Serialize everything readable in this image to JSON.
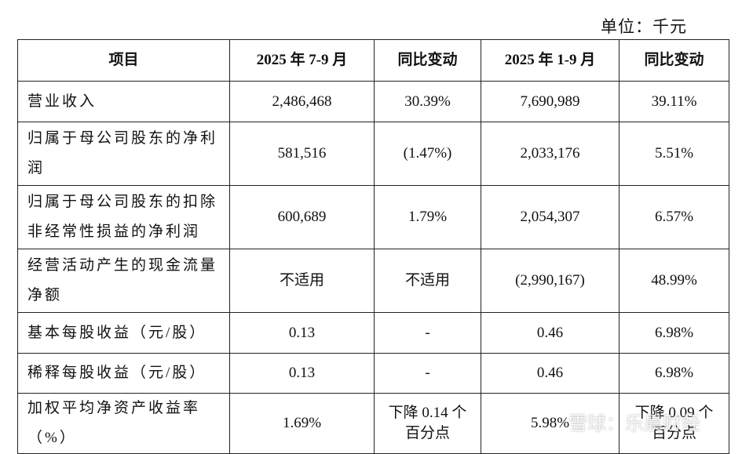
{
  "unit": "单位：千元",
  "table": {
    "header": [
      "项目",
      "2025 年 7-9 月",
      "同比变动",
      "2025 年 1-9 月",
      "同比变动"
    ],
    "rows": [
      [
        [
          "营业收入"
        ],
        [
          "2,486,468"
        ],
        [
          "30.39%"
        ],
        [
          "7,690,989"
        ],
        [
          "39.11%"
        ]
      ],
      [
        [
          "归属于母公司股东的净利",
          "润"
        ],
        [
          "581,516"
        ],
        [
          "(1.47%)"
        ],
        [
          "2,033,176"
        ],
        [
          "5.51%"
        ]
      ],
      [
        [
          "归属于母公司股东的扣除",
          "非经常性损益的净利润"
        ],
        [
          "600,689"
        ],
        [
          "1.79%"
        ],
        [
          "2,054,307"
        ],
        [
          "6.57%"
        ]
      ],
      [
        [
          "经营活动产生的现金流量",
          "净额"
        ],
        [
          "不适用"
        ],
        [
          "不适用"
        ],
        [
          "(2,990,167)"
        ],
        [
          "48.99%"
        ]
      ],
      [
        [
          "基本每股收益（元/股）"
        ],
        [
          "0.13"
        ],
        [
          "-"
        ],
        [
          "0.46"
        ],
        [
          "6.98%"
        ]
      ],
      [
        [
          "稀释每股收益（元/股）"
        ],
        [
          "0.13"
        ],
        [
          "-"
        ],
        [
          "0.46"
        ],
        [
          "6.98%"
        ]
      ],
      [
        [
          "加权平均净资产收益率（%）"
        ],
        [
          "1.69%"
        ],
        [
          "下降 0.14 个",
          "百分点"
        ],
        [
          "5.98%"
        ],
        [
          "下降 0.09 个",
          "百分点"
        ]
      ]
    ]
  },
  "watermark": "雪球：乐晨财经"
}
